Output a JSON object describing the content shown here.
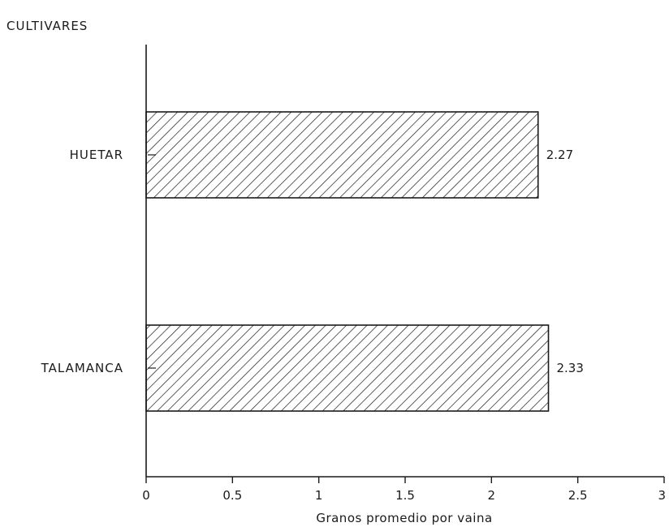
{
  "chart_data": {
    "type": "bar",
    "orientation": "horizontal",
    "ytitle": "CULTIVARES",
    "xlabel": "Granos promedio por vaina",
    "categories": [
      "HUETAR",
      "TALAMANCA"
    ],
    "values": [
      2.27,
      2.33
    ],
    "value_labels": [
      "2.27",
      "2.33"
    ],
    "xlim": [
      0,
      3
    ],
    "xticks": [
      0,
      0.5,
      1,
      1.5,
      2,
      2.5,
      3
    ],
    "xtick_labels": [
      "0",
      "0.5",
      "1",
      "1.5",
      "2",
      "2.5",
      "3"
    ],
    "bar_pattern": "diagonal-hatch",
    "colors": {
      "ink": "#1a1a1a",
      "background": "#ffffff"
    },
    "grid": false,
    "legend": "none"
  }
}
